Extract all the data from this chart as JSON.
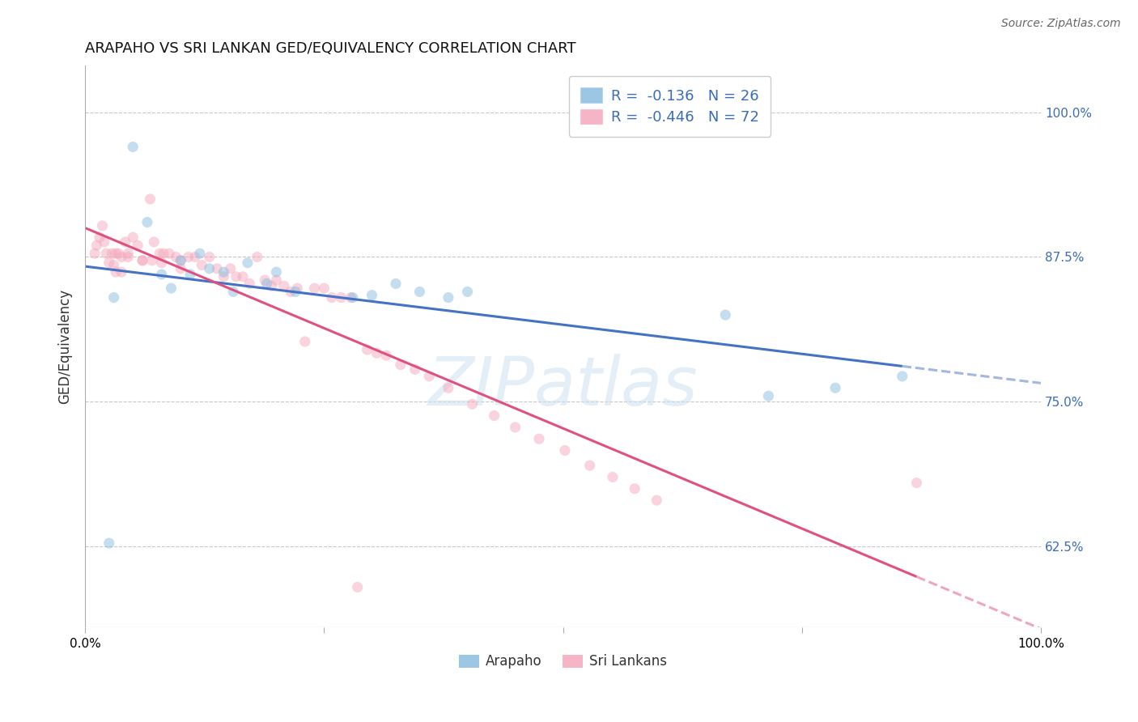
{
  "title": "ARAPAHO VS SRI LANKAN GED/EQUIVALENCY CORRELATION CHART",
  "source": "Source: ZipAtlas.com",
  "ylabel": "GED/Equivalency",
  "xlim": [
    0.0,
    1.0
  ],
  "ylim": [
    0.555,
    1.04
  ],
  "yticks": [
    0.625,
    0.75,
    0.875,
    1.0
  ],
  "ytick_labels": [
    "62.5%",
    "75.0%",
    "87.5%",
    "100.0%"
  ],
  "arapaho_R": -0.136,
  "arapaho_N": 26,
  "srilanka_R": -0.446,
  "srilanka_N": 72,
  "arapaho_color": "#8bbde0",
  "srilanka_color": "#f5a8bc",
  "arapaho_line_color": "#4472c4",
  "srilanka_line_color": "#e05080",
  "background_color": "#ffffff",
  "grid_color": "#c8c8c8",
  "marker_size": 90,
  "marker_alpha": 0.5,
  "line_width": 2.2,
  "arapaho_x": [
    0.025,
    0.05,
    0.065,
    0.08,
    0.09,
    0.1,
    0.11,
    0.12,
    0.13,
    0.145,
    0.155,
    0.17,
    0.19,
    0.2,
    0.22,
    0.28,
    0.3,
    0.325,
    0.35,
    0.38,
    0.4,
    0.67,
    0.715,
    0.785,
    0.855,
    0.03
  ],
  "arapaho_y": [
    0.628,
    0.97,
    0.905,
    0.86,
    0.848,
    0.872,
    0.86,
    0.878,
    0.865,
    0.862,
    0.845,
    0.87,
    0.852,
    0.862,
    0.845,
    0.84,
    0.842,
    0.852,
    0.845,
    0.84,
    0.845,
    0.825,
    0.755,
    0.762,
    0.772,
    0.84
  ],
  "srilanka_x": [
    0.01,
    0.012,
    0.015,
    0.018,
    0.02,
    0.022,
    0.025,
    0.028,
    0.03,
    0.032,
    0.035,
    0.038,
    0.042,
    0.045,
    0.05,
    0.055,
    0.06,
    0.068,
    0.072,
    0.078,
    0.082,
    0.088,
    0.095,
    0.1,
    0.108,
    0.115,
    0.122,
    0.13,
    0.138,
    0.145,
    0.152,
    0.158,
    0.165,
    0.172,
    0.18,
    0.188,
    0.195,
    0.2,
    0.208,
    0.215,
    0.222,
    0.23,
    0.24,
    0.25,
    0.258,
    0.268,
    0.278,
    0.295,
    0.305,
    0.315,
    0.33,
    0.345,
    0.36,
    0.38,
    0.405,
    0.428,
    0.45,
    0.475,
    0.502,
    0.528,
    0.552,
    0.575,
    0.598,
    0.032,
    0.038,
    0.045,
    0.06,
    0.07,
    0.08,
    0.1,
    0.87,
    0.285
  ],
  "srilanka_y": [
    0.878,
    0.885,
    0.892,
    0.902,
    0.888,
    0.878,
    0.87,
    0.878,
    0.868,
    0.862,
    0.878,
    0.862,
    0.888,
    0.878,
    0.892,
    0.885,
    0.872,
    0.925,
    0.888,
    0.878,
    0.878,
    0.878,
    0.875,
    0.872,
    0.875,
    0.875,
    0.868,
    0.875,
    0.865,
    0.858,
    0.865,
    0.858,
    0.858,
    0.852,
    0.875,
    0.855,
    0.85,
    0.855,
    0.85,
    0.845,
    0.848,
    0.802,
    0.848,
    0.848,
    0.84,
    0.84,
    0.84,
    0.795,
    0.792,
    0.79,
    0.782,
    0.778,
    0.772,
    0.762,
    0.748,
    0.738,
    0.728,
    0.718,
    0.708,
    0.695,
    0.685,
    0.675,
    0.665,
    0.878,
    0.875,
    0.875,
    0.872,
    0.872,
    0.87,
    0.865,
    0.68,
    0.59
  ]
}
